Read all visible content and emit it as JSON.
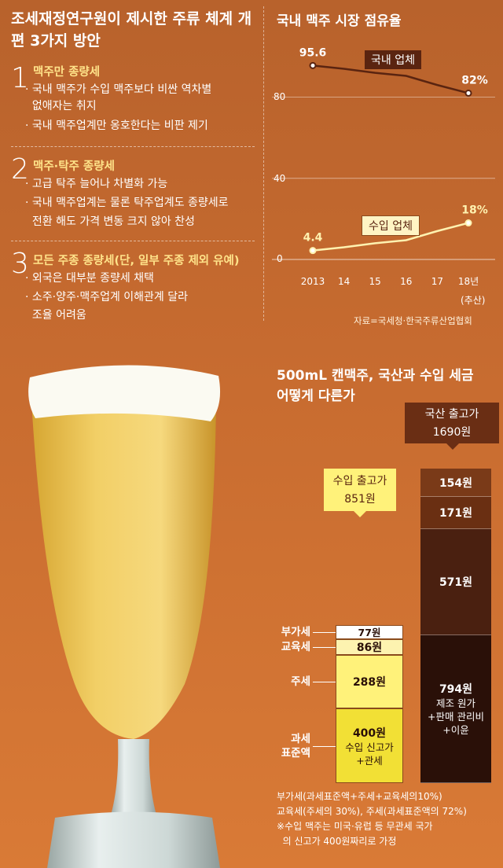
{
  "policy": {
    "title": "조세재정연구원이 제시한 주류 체계 개편 3가지 방안",
    "options": [
      {
        "num": "1",
        "head": "맥주만 종량세",
        "lines": [
          "· 국내 맥주가 수입 맥주보다 비싼 역차별",
          "  없애자는 취지",
          "· 국내 맥주업계만 옹호한다는 비판 제기"
        ]
      },
      {
        "num": "2",
        "head": "맥주·탁주 종량세",
        "lines": [
          "· 고급 탁주 늘어나 차별화 가능",
          "· 국내 맥주업계는 물론 탁주업계도 종량세로",
          "  전환 해도 가격 변동 크지 않아 찬성"
        ]
      },
      {
        "num": "3",
        "head": "모든 주종 종량세(단, 일부 주종 제외 유예)",
        "lines": [
          "· 외국은 대부분 종량세 채택",
          "· 소주·양주·맥주업계 이해관계 달라",
          "  조율 어려움"
        ]
      }
    ]
  },
  "chart_data": [
    {
      "type": "line",
      "title": "국내 맥주 시장 점유율",
      "x": [
        "2013",
        "14",
        "15",
        "16",
        "17",
        "18년"
      ],
      "x_note": "(추산)",
      "yticks": [
        "80",
        "40",
        "0"
      ],
      "ylim": [
        0,
        100
      ],
      "series": [
        {
          "name": "국내 업체",
          "values": [
            95.6,
            94,
            92,
            90.5,
            86,
            82
          ],
          "label_first": "95.6",
          "label_last": "82%",
          "color": "#5a2410"
        },
        {
          "name": "수입 업체",
          "values": [
            4.4,
            6,
            8,
            9.5,
            14,
            18
          ],
          "label_first": "4.4",
          "label_last": "18%",
          "color": "#fff2b0"
        }
      ],
      "source": "자료=국세청·한국주류산업협회"
    },
    {
      "type": "bar",
      "stacked": true,
      "title": "500mL 캔맥주, 국산과 수입 세금 어떻게 다른가",
      "categories": [
        "수입",
        "국산"
      ],
      "imported": {
        "header": "수입 출고가",
        "total": "851원",
        "segments": [
          {
            "label": "부가세",
            "value": 77,
            "text": "77원",
            "color": "#ffffff"
          },
          {
            "label": "교육세",
            "value": 86,
            "text": "86원",
            "color": "#fdf3b0"
          },
          {
            "label": "주세",
            "value": 288,
            "text": "288원",
            "color": "#fff27a"
          },
          {
            "label": "과세 표준액",
            "value": 400,
            "text": "400원",
            "sub": [
              "수입 신고가",
              "+관세"
            ],
            "color": "#f2e035"
          }
        ]
      },
      "domestic": {
        "header": "국산 출고가",
        "total": "1690원",
        "segments": [
          {
            "value": 154,
            "text": "154원",
            "color": "#7a3a18"
          },
          {
            "value": 171,
            "text": "171원",
            "color": "#6a2f12"
          },
          {
            "value": 571,
            "text": "571원",
            "color": "#4a2010"
          },
          {
            "value": 794,
            "text": "794원",
            "sub": [
              "제조 원가",
              "+판매 관리비",
              "+이윤"
            ],
            "color": "#2a1008"
          }
        ]
      },
      "notes": [
        "부가세(과세표준액+주세+교육세의10%)",
        "교육세(주세의 30%), 주세(과세표준액의 72%)",
        "※수입 맥주는 미국·유럽 등 무관세 국가",
        "  의 신고가 400원짜리로 가정"
      ]
    }
  ]
}
